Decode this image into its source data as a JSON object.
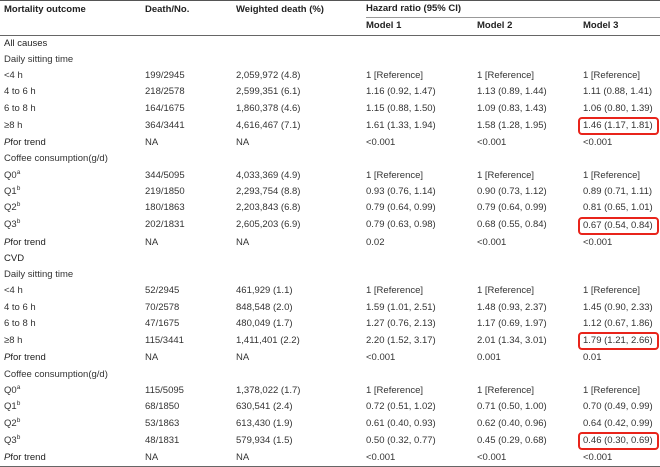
{
  "header": {
    "col_outcome": "Mortality outcome",
    "col_death": "Death/No.",
    "col_weighted": "Weighted death (%)",
    "col_hr": "Hazard ratio (95% CI)",
    "model1": "Model 1",
    "model2": "Model 2",
    "model3": "Model 3"
  },
  "rows": [
    {
      "kind": "section",
      "label": "All causes"
    },
    {
      "kind": "group",
      "label": "Daily sitting time"
    },
    {
      "kind": "data",
      "label": "<4 h",
      "death": "199/2945",
      "weighted": "2,059,972 (4.8)",
      "m1": "1 [Reference]",
      "m2": "1 [Reference]",
      "m3": "1 [Reference]"
    },
    {
      "kind": "data",
      "label": "4 to 6 h",
      "death": "218/2578",
      "weighted": "2,599,351 (6.1)",
      "m1": "1.16 (0.92, 1.47)",
      "m2": "1.13 (0.89, 1.44)",
      "m3": "1.11 (0.88, 1.41)"
    },
    {
      "kind": "data",
      "label": "6 to 8 h",
      "death": "164/1675",
      "weighted": "1,860,378 (4.6)",
      "m1": "1.15 (0.88, 1.50)",
      "m2": "1.09 (0.83, 1.43)",
      "m3": "1.06 (0.80, 1.39)"
    },
    {
      "kind": "data",
      "label": "≥8 h",
      "death": "364/3441",
      "weighted": "4,616,467 (7.1)",
      "m1": "1.61 (1.33, 1.94)",
      "m2": "1.58 (1.28, 1.95)",
      "m3": "1.46 (1.17, 1.81)",
      "hl": true
    },
    {
      "kind": "pft",
      "label_p": "P",
      "label_rest": "for trend",
      "death": "NA",
      "weighted": "NA",
      "m1": "<0.001",
      "m2": "<0.001",
      "m3": "<0.001"
    },
    {
      "kind": "group",
      "label": "Coffee consumption(g/d)"
    },
    {
      "kind": "data",
      "label": "Q0",
      "sup": "a",
      "death": "344/5095",
      "weighted": "4,033,369 (4.9)",
      "m1": "1 [Reference]",
      "m2": "1 [Reference]",
      "m3": "1 [Reference]"
    },
    {
      "kind": "data",
      "label": "Q1",
      "sup": "b",
      "death": "219/1850",
      "weighted": "2,293,754 (8.8)",
      "m1": "0.93 (0.76, 1.14)",
      "m2": "0.90 (0.73, 1.12)",
      "m3": "0.89 (0.71, 1.11)"
    },
    {
      "kind": "data",
      "label": "Q2",
      "sup": "b",
      "death": "180/1863",
      "weighted": "2,203,843 (6.8)",
      "m1": "0.79 (0.64, 0.99)",
      "m2": "0.79 (0.64, 0.99)",
      "m3": "0.81 (0.65, 1.01)"
    },
    {
      "kind": "data",
      "label": "Q3",
      "sup": "b",
      "death": "202/1831",
      "weighted": "2,605,203 (6.9)",
      "m1": "0.79 (0.63, 0.98)",
      "m2": "0.68 (0.55, 0.84)",
      "m3": "0.67 (0.54, 0.84)",
      "hl": true
    },
    {
      "kind": "pft",
      "label_p": "P",
      "label_rest": "for trend",
      "death": "NA",
      "weighted": "NA",
      "m1": "0.02",
      "m2": "<0.001",
      "m3": "<0.001"
    },
    {
      "kind": "section",
      "label": "CVD"
    },
    {
      "kind": "group",
      "label": "Daily sitting time"
    },
    {
      "kind": "data",
      "label": "<4 h",
      "death": "52/2945",
      "weighted": "461,929 (1.1)",
      "m1": "1 [Reference]",
      "m2": "1 [Reference]",
      "m3": "1 [Reference]"
    },
    {
      "kind": "data",
      "label": "4 to 6 h",
      "death": "70/2578",
      "weighted": "848,548 (2.0)",
      "m1": "1.59 (1.01, 2.51)",
      "m2": "1.48 (0.93, 2.37)",
      "m3": "1.45 (0.90, 2.33)"
    },
    {
      "kind": "data",
      "label": "6 to 8 h",
      "death": "47/1675",
      "weighted": "480,049 (1.7)",
      "m1": "1.27 (0.76, 2.13)",
      "m2": "1.17 (0.69, 1.97)",
      "m3": "1.12 (0.67, 1.86)"
    },
    {
      "kind": "data",
      "label": "≥8 h",
      "death": "115/3441",
      "weighted": "1,411,401 (2.2)",
      "m1": "2.20 (1.52, 3.17)",
      "m2": "2.01 (1.34, 3.01)",
      "m3": "1.79 (1.21, 2.66)",
      "hl": true
    },
    {
      "kind": "pft",
      "label_p": "P",
      "label_rest": "for trend",
      "death": "NA",
      "weighted": "NA",
      "m1": "<0.001",
      "m2": "0.001",
      "m3": "0.01"
    },
    {
      "kind": "group",
      "label": "Coffee consumption(g/d)"
    },
    {
      "kind": "data",
      "label": "Q0",
      "sup": "a",
      "death": "115/5095",
      "weighted": "1,378,022 (1.7)",
      "m1": "1 [Reference]",
      "m2": "1 [Reference]",
      "m3": "1 [Reference]"
    },
    {
      "kind": "data",
      "label": "Q1",
      "sup": "b",
      "death": "68/1850",
      "weighted": "630,541 (2.4)",
      "m1": "0.72 (0.51, 1.02)",
      "m2": "0.71 (0.50, 1.00)",
      "m3": "0.70 (0.49, 0.99)"
    },
    {
      "kind": "data",
      "label": "Q2",
      "sup": "b",
      "death": "53/1863",
      "weighted": "613,430 (1.9)",
      "m1": "0.61 (0.40, 0.93)",
      "m2": "0.62 (0.40, 0.96)",
      "m3": "0.64 (0.42, 0.99)"
    },
    {
      "kind": "data",
      "label": "Q3",
      "sup": "b",
      "death": "48/1831",
      "weighted": "579,934 (1.5)",
      "m1": "0.50 (0.32, 0.77)",
      "m2": "0.45 (0.29, 0.68)",
      "m3": "0.46 (0.30, 0.69)",
      "hl": true
    },
    {
      "kind": "pft",
      "label_p": "P",
      "label_rest": "for trend",
      "death": "NA",
      "weighted": "NA",
      "m1": "<0.001",
      "m2": "<0.001",
      "m3": "<0.001"
    }
  ],
  "colors": {
    "highlight": "#e8241b",
    "text": "#333333"
  }
}
